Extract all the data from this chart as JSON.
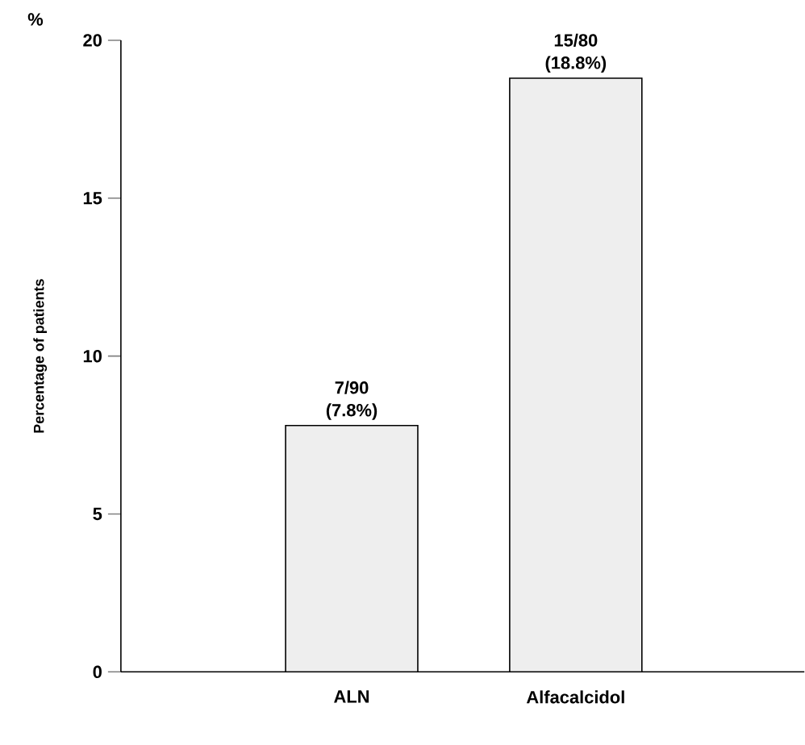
{
  "chart_data": {
    "type": "bar",
    "ylabel": "Percentage of patients",
    "annotations": [
      "%"
    ],
    "categories": [
      "ALN",
      "Alfacalcidol"
    ],
    "values": [
      7.8,
      18.8
    ],
    "value_labels": [
      "7/90 (7.8%)",
      "15/80 (18.8%)"
    ],
    "color": "#eeeeee",
    "ylim": [
      0,
      20
    ],
    "yticks": [
      0,
      5,
      10,
      15,
      20
    ],
    "grid": false
  }
}
